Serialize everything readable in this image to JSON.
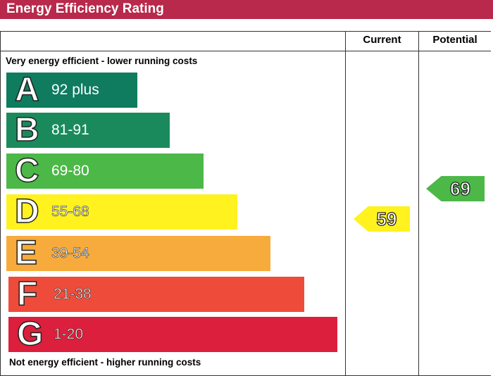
{
  "header": {
    "title": "Energy Efficiency Rating"
  },
  "columns": {
    "current": "Current",
    "potential": "Potential"
  },
  "chart_data": {
    "type": "bar",
    "title": "Energy Efficiency Rating",
    "top_note": "Very energy efficient - lower running costs",
    "bottom_note": "Not energy efficient - higher running costs",
    "bands": [
      {
        "letter": "A",
        "range": "92 plus",
        "color": "#0f7b5f"
      },
      {
        "letter": "B",
        "range": "81-91",
        "color": "#1a8a5c"
      },
      {
        "letter": "C",
        "range": "69-80",
        "color": "#4cb848"
      },
      {
        "letter": "D",
        "range": "55-68",
        "color": "#fff21e"
      },
      {
        "letter": "E",
        "range": "39-54",
        "color": "#f7ab3c"
      },
      {
        "letter": "F",
        "range": "21-38",
        "color": "#ef4b3a"
      },
      {
        "letter": "G",
        "range": "1-20",
        "color": "#dc1f3c"
      }
    ],
    "current": {
      "value": 59,
      "band": "D",
      "color": "#fff21e"
    },
    "potential": {
      "value": 69,
      "band": "C",
      "color": "#4cb848"
    }
  }
}
